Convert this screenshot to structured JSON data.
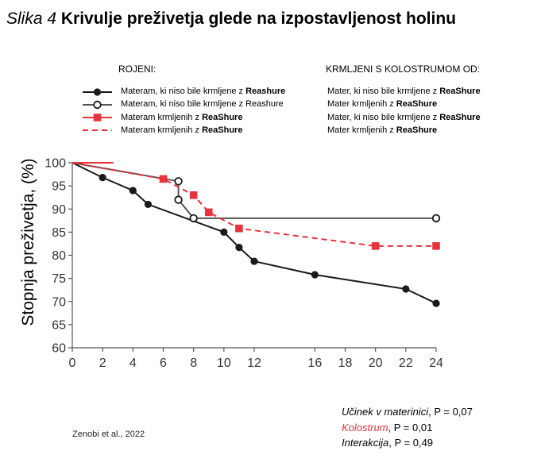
{
  "title": {
    "lead": "Slika 4",
    "main": "Krivulje preživetja glede na izpostavljenost holinu"
  },
  "legend": {
    "header_left": "ROJENI:",
    "header_right": "KRMLJENI S KOLOSTRUMOM OD:",
    "rows": [
      {
        "left_text": "Materam, ki niso bile krmljene z ",
        "left_bold": "Reashure",
        "right_text": "Mater, ki niso bile krmljene z ",
        "right_bold": "ReaShure"
      },
      {
        "left_text": "Materam, ki niso bile krmljene z Reashure",
        "left_bold": "",
        "right_text": "Mater krmljenih z ",
        "right_bold": "ReaShure"
      },
      {
        "left_text": "Materam krmljenih z ",
        "left_bold": "ReaShure",
        "right_text": "Mater, ki niso bile krmljene z ",
        "right_bold": "ReaShure"
      },
      {
        "left_text": "Materam krmljenih z ",
        "left_bold": "ReaShure",
        "right_text": "Mater krmljenih z ",
        "right_bold": "ReaShure"
      }
    ]
  },
  "source": "Zenobi et al., 2022",
  "stats": [
    {
      "label": "Učinek v materinici",
      "value": ", P = 0,07",
      "color": "#000000"
    },
    {
      "label": "Kolostrum",
      "value": ", P = 0,01",
      "color": "#e8323c"
    },
    {
      "label": "Interakcija",
      "value": ", P = 0,49",
      "color": "#000000"
    }
  ],
  "chart_data": {
    "type": "line",
    "ylabel": "Stopnja preživetja, (%)",
    "xlabel": "",
    "xlim": [
      0,
      24
    ],
    "ylim": [
      60,
      100
    ],
    "xticks": [
      0,
      2,
      4,
      6,
      8,
      10,
      12,
      16,
      18,
      20,
      22,
      24
    ],
    "yticks": [
      60,
      65,
      70,
      75,
      80,
      85,
      90,
      95,
      100
    ],
    "grid": false,
    "series": [
      {
        "style": "solid-black-filled-circle",
        "color": "#1a1a1a",
        "x": [
          0,
          2,
          4,
          5,
          10,
          11,
          12,
          16,
          22,
          24
        ],
        "y": [
          100,
          96.8,
          94,
          91,
          85,
          81.7,
          78.7,
          75.8,
          72.7,
          69.6
        ],
        "markers": [
          2,
          4,
          5,
          10,
          11,
          12,
          16,
          22,
          24
        ]
      },
      {
        "style": "solid-gray-open-circle",
        "color": "#555555",
        "x": [
          0,
          7,
          7,
          8,
          24
        ],
        "y": [
          100,
          96,
          92,
          88,
          88
        ],
        "markers": [
          7,
          7,
          8,
          24
        ]
      },
      {
        "style": "solid-red-square",
        "color": "#e8323c",
        "x": [
          0,
          2.7
        ],
        "y": [
          100,
          100
        ],
        "markers": []
      },
      {
        "style": "dashed-red-square",
        "color": "#e8323c",
        "x": [
          0,
          6,
          8,
          9,
          11,
          20,
          24
        ],
        "y": [
          100,
          96.5,
          93,
          89.3,
          85.8,
          82,
          82
        ],
        "markers": [
          6,
          8,
          9,
          11,
          20,
          24
        ]
      }
    ]
  }
}
